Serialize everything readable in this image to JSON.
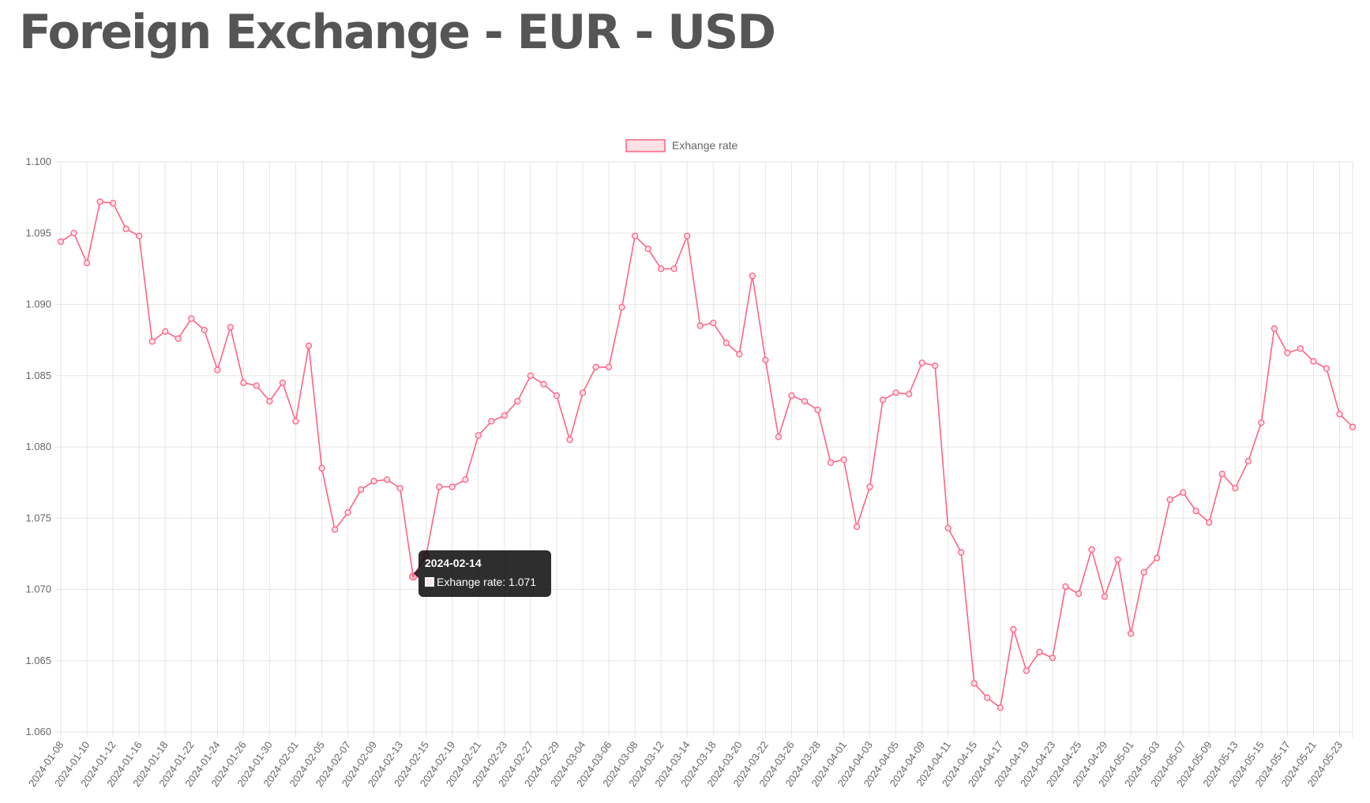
{
  "page": {
    "title": "Foreign Exchange - EUR - USD"
  },
  "colors": {
    "line": "#ff6384",
    "fill": "#ffe0e6",
    "grid": "#e5e5e5",
    "text": "#666666"
  },
  "tooltip": {
    "title": "2024-02-14",
    "label": "Exhange rate: 1.071"
  },
  "chart_data": {
    "type": "line",
    "title": "",
    "xlabel": "",
    "ylabel": "",
    "ylim": [
      1.06,
      1.1
    ],
    "y_ticks": [
      "1.100",
      "1.095",
      "1.090",
      "1.085",
      "1.080",
      "1.075",
      "1.070",
      "1.065",
      "1.060"
    ],
    "grid": true,
    "legend_position": "top-center",
    "series": [
      {
        "name": "Exhange rate",
        "x": [
          "2024-01-08",
          "2024-01-09",
          "2024-01-10",
          "2024-01-11",
          "2024-01-12",
          "2024-01-15",
          "2024-01-16",
          "2024-01-17",
          "2024-01-18",
          "2024-01-19",
          "2024-01-22",
          "2024-01-23",
          "2024-01-24",
          "2024-01-25",
          "2024-01-26",
          "2024-01-29",
          "2024-01-30",
          "2024-01-31",
          "2024-02-01",
          "2024-02-02",
          "2024-02-05",
          "2024-02-06",
          "2024-02-07",
          "2024-02-08",
          "2024-02-09",
          "2024-02-12",
          "2024-02-13",
          "2024-02-14",
          "2024-02-15",
          "2024-02-16",
          "2024-02-19",
          "2024-02-20",
          "2024-02-21",
          "2024-02-22",
          "2024-02-23",
          "2024-02-26",
          "2024-02-27",
          "2024-02-28",
          "2024-02-29",
          "2024-03-01",
          "2024-03-04",
          "2024-03-05",
          "2024-03-06",
          "2024-03-07",
          "2024-03-08",
          "2024-03-11",
          "2024-03-12",
          "2024-03-13",
          "2024-03-14",
          "2024-03-15",
          "2024-03-18",
          "2024-03-19",
          "2024-03-20",
          "2024-03-21",
          "2024-03-22",
          "2024-03-25",
          "2024-03-26",
          "2024-03-27",
          "2024-03-28",
          "2024-03-29",
          "2024-04-01",
          "2024-04-02",
          "2024-04-03",
          "2024-04-04",
          "2024-04-05",
          "2024-04-08",
          "2024-04-09",
          "2024-04-10",
          "2024-04-11",
          "2024-04-12",
          "2024-04-15",
          "2024-04-16",
          "2024-04-17",
          "2024-04-18",
          "2024-04-19",
          "2024-04-22",
          "2024-04-23",
          "2024-04-24",
          "2024-04-25",
          "2024-04-26",
          "2024-04-29",
          "2024-04-30",
          "2024-05-01",
          "2024-05-02",
          "2024-05-03",
          "2024-05-06",
          "2024-05-07",
          "2024-05-08",
          "2024-05-09",
          "2024-05-10",
          "2024-05-13",
          "2024-05-14",
          "2024-05-15",
          "2024-05-16",
          "2024-05-17",
          "2024-05-20",
          "2024-05-21",
          "2024-05-22",
          "2024-05-23",
          "2024-05-24"
        ],
        "values": [
          1.0944,
          1.095,
          1.0929,
          1.0972,
          1.0971,
          1.0953,
          1.0948,
          1.0874,
          1.0881,
          1.0876,
          1.089,
          1.0882,
          1.0854,
          1.0884,
          1.0845,
          1.0843,
          1.0832,
          1.0845,
          1.0818,
          1.0871,
          1.0785,
          1.0742,
          1.0754,
          1.077,
          1.0776,
          1.0777,
          1.0771,
          1.0709,
          1.0724,
          1.0772,
          1.0772,
          1.0777,
          1.0808,
          1.0818,
          1.0822,
          1.0832,
          1.085,
          1.0844,
          1.0836,
          1.0805,
          1.0838,
          1.0856,
          1.0856,
          1.0898,
          1.0948,
          1.0939,
          1.0925,
          1.0925,
          1.0948,
          1.0885,
          1.0887,
          1.0873,
          1.0865,
          1.092,
          1.0861,
          1.0807,
          1.0836,
          1.0832,
          1.0826,
          1.0789,
          1.0791,
          1.0744,
          1.0772,
          1.0833,
          1.0838,
          1.0837,
          1.0859,
          1.0857,
          1.0743,
          1.0726,
          1.0634,
          1.0624,
          1.0617,
          1.0672,
          1.0643,
          1.0656,
          1.0652,
          1.0702,
          1.0697,
          1.0728,
          1.0695,
          1.0721,
          1.0669,
          1.0712,
          1.0722,
          1.0763,
          1.0768,
          1.0755,
          1.0747,
          1.0781,
          1.0771,
          1.079,
          1.0817,
          1.0883,
          1.0866,
          1.0869,
          1.086,
          1.0855,
          1.0823,
          1.0814
        ]
      }
    ]
  }
}
